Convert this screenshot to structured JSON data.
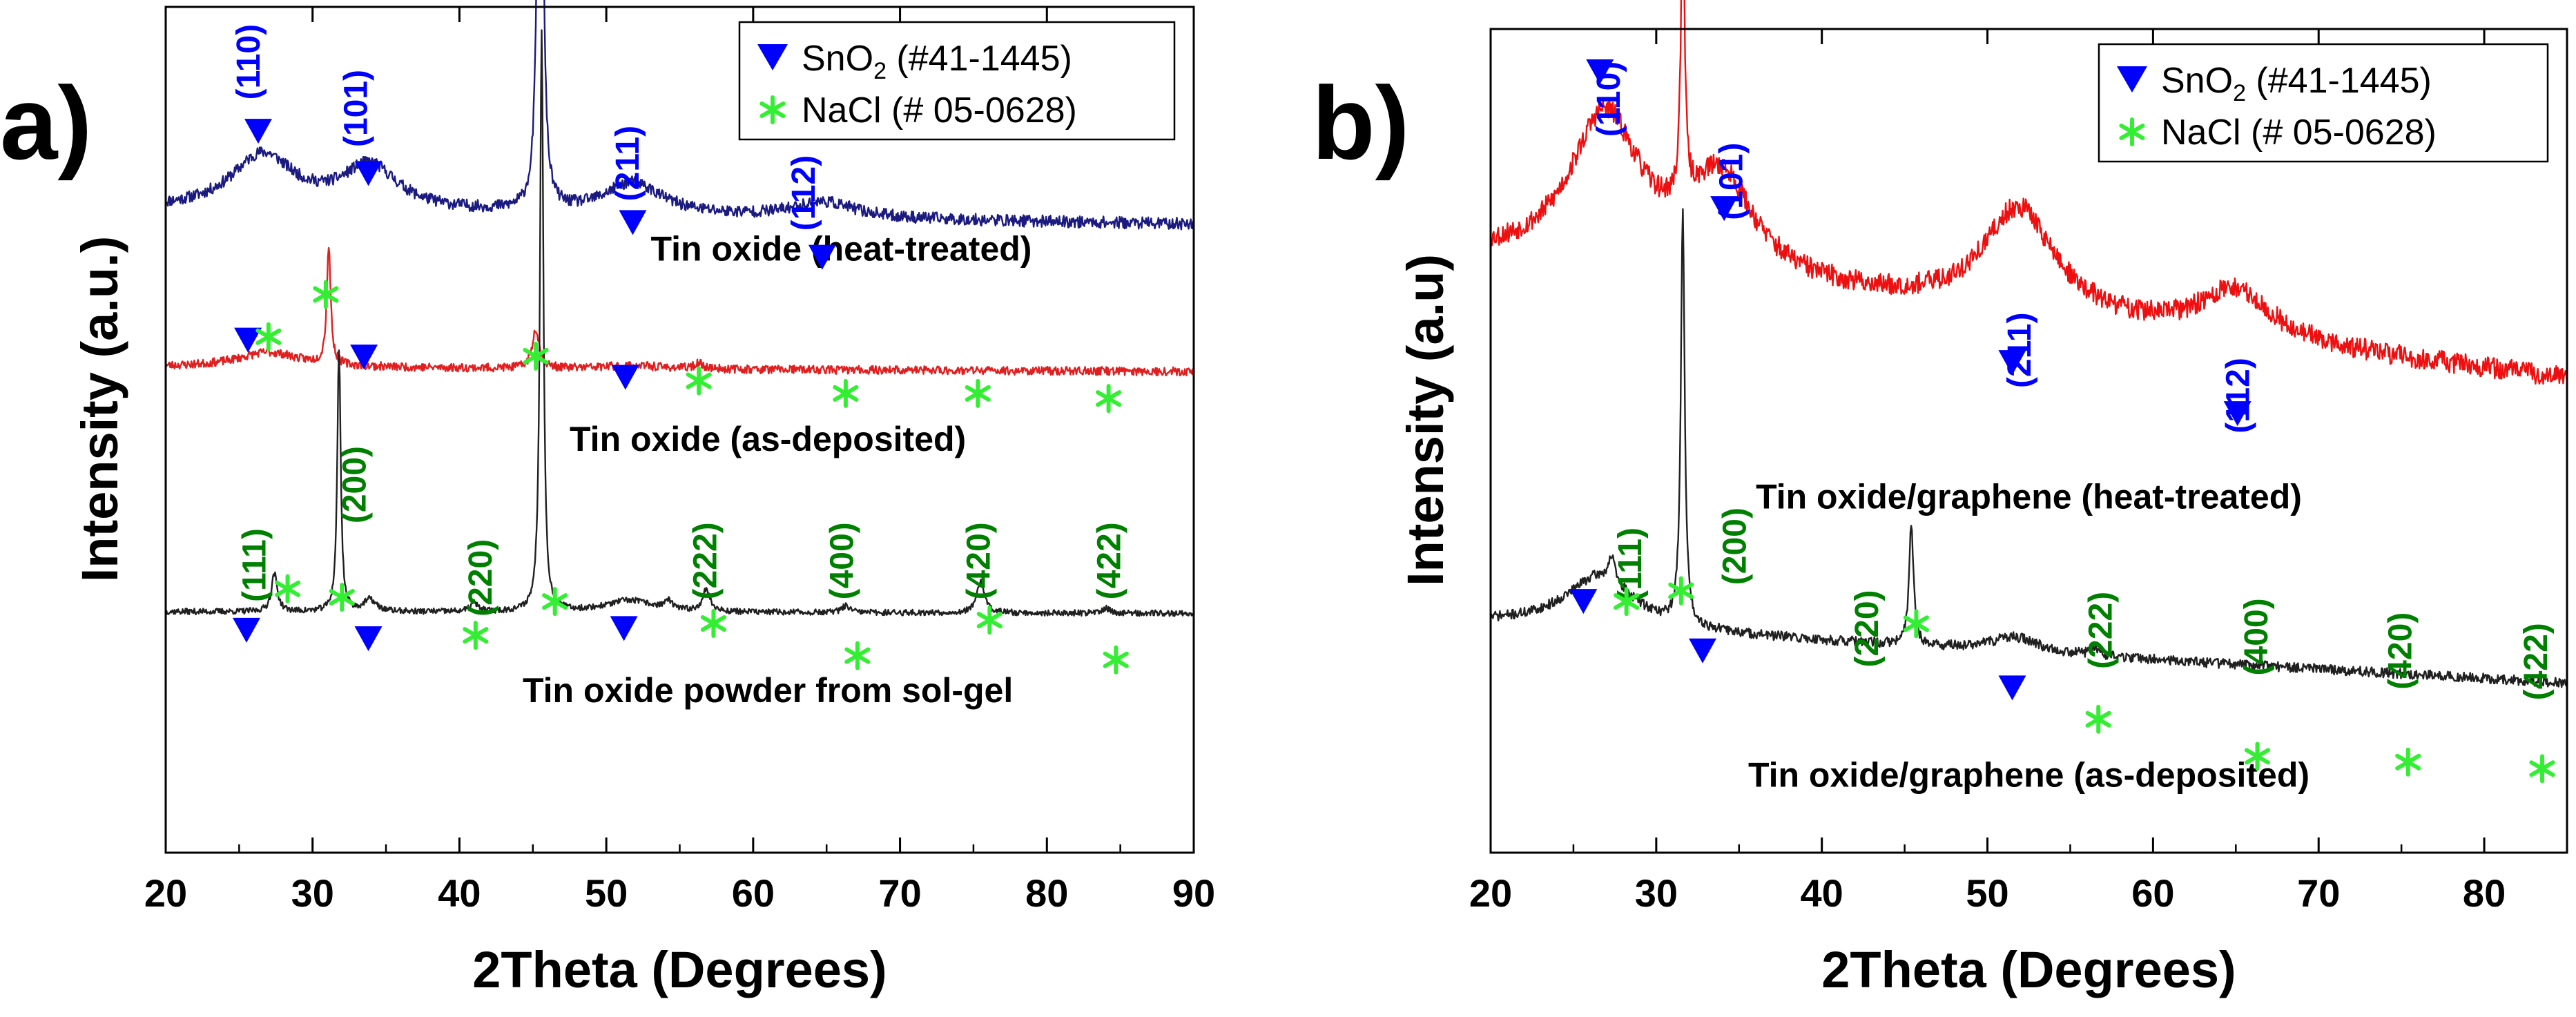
{
  "chart_data": [
    {
      "type": "line",
      "panel": "a)",
      "xlabel": "2Theta (Degrees)",
      "ylabel": "Intensity (a.u.)",
      "xlim": [
        20,
        90
      ],
      "xticks": [
        20,
        30,
        40,
        50,
        60,
        70,
        80,
        90
      ],
      "ylim": [
        0,
        1
      ],
      "legend": {
        "placement": "top-right",
        "entries": [
          {
            "marker": "triangle-down",
            "color": "#0000ff",
            "base": "SnO",
            "sub": "2",
            "rest": " (#41-1445)"
          },
          {
            "marker": "asterisk",
            "color": "#33ee33",
            "text": "NaCl (# 05-0628)"
          }
        ]
      },
      "series": [
        {
          "name": "Tin oxide (heat-treated)",
          "color": "#1a1a80",
          "baseline": 0.76,
          "noise": 0.007,
          "seed": 11,
          "tail": -0.017,
          "label_pos": [
            66,
            0.7
          ],
          "peaks": [
            {
              "x": 26.6,
              "h": 0.065,
              "w": 2.6
            },
            {
              "x": 33.9,
              "h": 0.052,
              "w": 2.3
            },
            {
              "x": 51.8,
              "h": 0.038,
              "w": 2.4
            },
            {
              "x": 64.8,
              "h": 0.019,
              "w": 2.6
            },
            {
              "x": 45.5,
              "h": 1.0,
              "w": 0.16
            }
          ]
        },
        {
          "name": "Tin oxide (as-deposited)",
          "color": "#e02020",
          "baseline": 0.574,
          "noise": 0.005,
          "seed": 23,
          "tail": -0.005,
          "label_pos": [
            61,
            0.475
          ],
          "peaks": [
            {
              "x": 27.0,
              "h": 0.018,
              "w": 2.6
            },
            {
              "x": 31.1,
              "h": 0.14,
              "w": 0.16
            },
            {
              "x": 45.2,
              "h": 0.047,
              "w": 0.28
            },
            {
              "x": 56.3,
              "h": 0.006,
              "w": 0.4
            },
            {
              "x": 51.8,
              "h": 0.004,
              "w": 2.5
            }
          ]
        },
        {
          "name": "Tin oxide powder from sol-gel",
          "color": "#202020",
          "baseline": 0.285,
          "noise": 0.0035,
          "seed": 37,
          "tail": -0.002,
          "label_pos": [
            61,
            0.178
          ],
          "peaks": [
            {
              "x": 27.4,
              "h": 0.045,
              "w": 0.24
            },
            {
              "x": 31.8,
              "h": 0.31,
              "w": 0.14
            },
            {
              "x": 33.9,
              "h": 0.014,
              "w": 0.5
            },
            {
              "x": 41.0,
              "h": 0.01,
              "w": 0.3
            },
            {
              "x": 45.6,
              "h": 0.69,
              "w": 0.14
            },
            {
              "x": 51.6,
              "h": 0.014,
              "w": 2.0
            },
            {
              "x": 54.2,
              "h": 0.01,
              "w": 0.3
            },
            {
              "x": 56.8,
              "h": 0.026,
              "w": 0.3
            },
            {
              "x": 66.3,
              "h": 0.008,
              "w": 0.3
            },
            {
              "x": 75.5,
              "h": 0.038,
              "w": 0.3
            },
            {
              "x": 84.0,
              "h": 0.006,
              "w": 0.3
            }
          ]
        }
      ],
      "annotations": [
        {
          "kind": "text",
          "text": "(110)",
          "x": 26.4,
          "y": 0.935,
          "color": "blue",
          "rot": true
        },
        {
          "kind": "text",
          "text": "(101)",
          "x": 33.7,
          "y": 0.88,
          "color": "blue",
          "rot": true
        },
        {
          "kind": "text",
          "text": "(211)",
          "x": 52.2,
          "y": 0.815,
          "color": "blue",
          "rot": true
        },
        {
          "kind": "text",
          "text": "(112)",
          "x": 64.2,
          "y": 0.78,
          "color": "blue",
          "rot": true
        },
        {
          "kind": "text",
          "text": "(111)",
          "x": 26.8,
          "y": 0.34,
          "color": "green",
          "rot": true
        },
        {
          "kind": "text",
          "text": "(200)",
          "x": 33.6,
          "y": 0.435,
          "color": "green",
          "rot": true
        },
        {
          "kind": "text",
          "text": "(220)",
          "x": 42.2,
          "y": 0.325,
          "color": "green",
          "rot": true
        },
        {
          "kind": "text",
          "text": "(222)",
          "x": 57.5,
          "y": 0.345,
          "color": "green",
          "rot": true
        },
        {
          "kind": "text",
          "text": "(400)",
          "x": 66.8,
          "y": 0.345,
          "color": "green",
          "rot": true
        },
        {
          "kind": "text",
          "text": "(420)",
          "x": 76.1,
          "y": 0.345,
          "color": "green",
          "rot": true
        },
        {
          "kind": "text",
          "text": "(422)",
          "x": 85.0,
          "y": 0.345,
          "color": "green",
          "rot": true
        },
        {
          "kind": "tri",
          "x": 26.3,
          "y": 0.853
        },
        {
          "kind": "tri",
          "x": 33.8,
          "y": 0.803
        },
        {
          "kind": "tri",
          "x": 51.8,
          "y": 0.745
        },
        {
          "kind": "tri",
          "x": 64.7,
          "y": 0.704
        },
        {
          "kind": "tri",
          "x": 25.6,
          "y": 0.606
        },
        {
          "kind": "tri",
          "x": 33.5,
          "y": 0.586
        },
        {
          "kind": "tri",
          "x": 51.3,
          "y": 0.562
        },
        {
          "kind": "tri",
          "x": 25.5,
          "y": 0.263
        },
        {
          "kind": "tri",
          "x": 33.8,
          "y": 0.253
        },
        {
          "kind": "tri",
          "x": 51.2,
          "y": 0.265
        },
        {
          "kind": "star",
          "x": 27.0,
          "y": 0.61
        },
        {
          "kind": "star",
          "x": 30.9,
          "y": 0.66
        },
        {
          "kind": "star",
          "x": 45.2,
          "y": 0.587
        },
        {
          "kind": "star",
          "x": 56.3,
          "y": 0.558
        },
        {
          "kind": "star",
          "x": 66.3,
          "y": 0.543
        },
        {
          "kind": "star",
          "x": 75.3,
          "y": 0.543
        },
        {
          "kind": "star",
          "x": 84.2,
          "y": 0.537
        },
        {
          "kind": "star",
          "x": 28.3,
          "y": 0.312
        },
        {
          "kind": "star",
          "x": 32.0,
          "y": 0.302
        },
        {
          "kind": "star",
          "x": 41.1,
          "y": 0.257
        },
        {
          "kind": "star",
          "x": 46.5,
          "y": 0.297
        },
        {
          "kind": "star",
          "x": 57.3,
          "y": 0.271
        },
        {
          "kind": "star",
          "x": 67.1,
          "y": 0.233
        },
        {
          "kind": "star",
          "x": 76.1,
          "y": 0.275
        },
        {
          "kind": "star",
          "x": 84.7,
          "y": 0.228
        }
      ]
    },
    {
      "type": "line",
      "panel": "b)",
      "xlabel": "2Theta (Degrees)",
      "ylabel": "Intensity (a.u)",
      "xlim": [
        20,
        85
      ],
      "xticks": [
        20,
        30,
        40,
        50,
        60,
        70,
        80
      ],
      "ylim": [
        0,
        1
      ],
      "legend": {
        "placement": "top-right",
        "entries": [
          {
            "marker": "triangle-down",
            "color": "#0000ff",
            "base": "SnO",
            "sub": "2",
            "rest": " (#41-1445)"
          },
          {
            "marker": "asterisk",
            "color": "#33ee33",
            "text": "NaCl (# 05-0628)"
          }
        ]
      },
      "series": [
        {
          "name": "Tin oxide/graphene (heat-treated)",
          "color": "#ee1010",
          "baseline": 0.72,
          "noise": 0.013,
          "seed": 53,
          "tail": -0.145,
          "label_pos": [
            52.5,
            0.418
          ],
          "peaks": [
            {
              "x": 26.9,
              "h": 0.185,
              "w": 2.6
            },
            {
              "x": 33.9,
              "h": 0.12,
              "w": 2.4
            },
            {
              "x": 51.9,
              "h": 0.13,
              "w": 2.6
            },
            {
              "x": 65.0,
              "h": 0.06,
              "w": 2.6
            },
            {
              "x": 31.6,
              "h": 0.34,
              "w": 0.14
            }
          ]
        },
        {
          "name": "Tin oxide/graphene (as-deposited)",
          "color": "#202020",
          "baseline": 0.278,
          "noise": 0.006,
          "seed": 71,
          "tail": -0.072,
          "label_pos": [
            52.5,
            0.08
          ],
          "peaks": [
            {
              "x": 26.6,
              "h": 0.065,
              "w": 2.6
            },
            {
              "x": 27.3,
              "h": 0.03,
              "w": 0.22
            },
            {
              "x": 31.6,
              "h": 0.5,
              "w": 0.14
            },
            {
              "x": 45.4,
              "h": 0.15,
              "w": 0.16
            },
            {
              "x": 51.6,
              "h": 0.018,
              "w": 1.8
            },
            {
              "x": 56.5,
              "h": 0.01,
              "w": 0.3
            }
          ]
        }
      ],
      "annotations": [
        {
          "kind": "text",
          "text": "(110)",
          "x": 27.8,
          "y": 0.915,
          "color": "blue",
          "rot": true
        },
        {
          "kind": "text",
          "text": "(101)",
          "x": 35.2,
          "y": 0.815,
          "color": "blue",
          "rot": true
        },
        {
          "kind": "text",
          "text": "(211)",
          "x": 52.6,
          "y": 0.61,
          "color": "blue",
          "rot": true
        },
        {
          "kind": "text",
          "text": "(112)",
          "x": 65.8,
          "y": 0.555,
          "color": "blue",
          "rot": true
        },
        {
          "kind": "text",
          "text": "(111)",
          "x": 29.1,
          "y": 0.35,
          "color": "green",
          "rot": true
        },
        {
          "kind": "text",
          "text": "(200)",
          "x": 35.4,
          "y": 0.372,
          "color": "green",
          "rot": true
        },
        {
          "kind": "text",
          "text": "(220)",
          "x": 43.4,
          "y": 0.272,
          "color": "green",
          "rot": true
        },
        {
          "kind": "text",
          "text": "(222)",
          "x": 57.5,
          "y": 0.27,
          "color": "green",
          "rot": true
        },
        {
          "kind": "text",
          "text": "(400)",
          "x": 66.9,
          "y": 0.262,
          "color": "green",
          "rot": true
        },
        {
          "kind": "text",
          "text": "(420)",
          "x": 75.6,
          "y": 0.245,
          "color": "green",
          "rot": true
        },
        {
          "kind": "text",
          "text": "(422)",
          "x": 83.8,
          "y": 0.232,
          "color": "green",
          "rot": true
        },
        {
          "kind": "tri",
          "x": 26.6,
          "y": 0.948
        },
        {
          "kind": "tri",
          "x": 34.1,
          "y": 0.782
        },
        {
          "kind": "tri",
          "x": 51.5,
          "y": 0.595
        },
        {
          "kind": "tri",
          "x": 65.1,
          "y": 0.533
        },
        {
          "kind": "tri",
          "x": 25.6,
          "y": 0.305
        },
        {
          "kind": "tri",
          "x": 32.8,
          "y": 0.245
        },
        {
          "kind": "tri",
          "x": 51.5,
          "y": 0.2
        },
        {
          "kind": "star",
          "x": 28.2,
          "y": 0.305
        },
        {
          "kind": "star",
          "x": 31.5,
          "y": 0.318
        },
        {
          "kind": "star",
          "x": 45.7,
          "y": 0.278
        },
        {
          "kind": "star",
          "x": 56.7,
          "y": 0.162
        },
        {
          "kind": "star",
          "x": 66.3,
          "y": 0.117
        },
        {
          "kind": "star",
          "x": 75.4,
          "y": 0.11
        },
        {
          "kind": "star",
          "x": 83.5,
          "y": 0.102
        }
      ]
    }
  ]
}
